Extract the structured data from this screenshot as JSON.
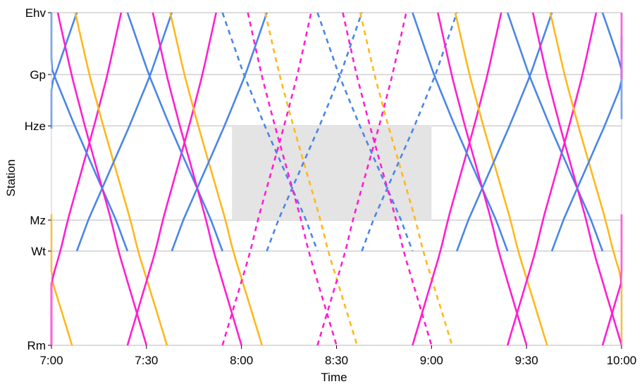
{
  "chart_data": {
    "type": "line",
    "title": "",
    "xlabel": "Time",
    "ylabel": "Station",
    "x_ticks": [
      "7:00",
      "7:30",
      "8:00",
      "8:30",
      "9:00",
      "9:30",
      "10:00"
    ],
    "xlim": [
      "7:00",
      "10:00"
    ],
    "stations": [
      {
        "name": "Ehv",
        "km": 0
      },
      {
        "name": "Gp",
        "km": 9.9
      },
      {
        "name": "Hze",
        "km": 19.6
      },
      {
        "name": "Mz",
        "km": 38.7
      },
      {
        "name": "Wt",
        "km": 44.0
      },
      {
        "name": "Rm",
        "km": 64.3
      }
    ],
    "grid": true,
    "closure": {
      "from": "7:57",
      "to": "9:00",
      "between": [
        "Hze",
        "Mz"
      ],
      "color": "#e4e4e4"
    },
    "colors": {
      "intercity": "#ffb81c",
      "sprinter": "#4a86e8",
      "express": "#ff1fd0"
    },
    "series": []
  }
}
